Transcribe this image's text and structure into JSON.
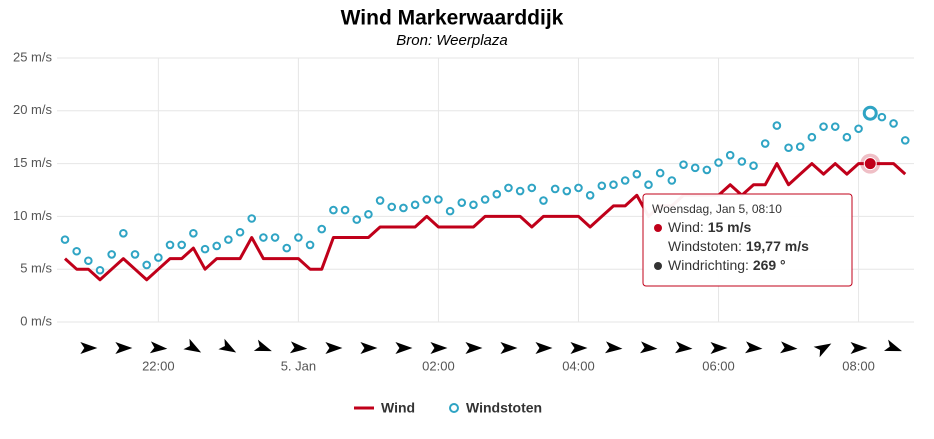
{
  "chart_data": {
    "type": "line",
    "title": "Wind Markerwaarddijk",
    "subtitle": "Bron: Weerplaza",
    "categories": [
      null,
      null,
      null,
      null,
      null,
      null,
      null,
      null,
      "22:00",
      null,
      null,
      null,
      null,
      null,
      null,
      null,
      null,
      null,
      null,
      null,
      "5. Jan",
      null,
      null,
      null,
      null,
      null,
      null,
      null,
      null,
      null,
      null,
      null,
      "02:00",
      null,
      null,
      null,
      null,
      null,
      null,
      null,
      null,
      null,
      null,
      null,
      "04:00",
      null,
      null,
      null,
      null,
      null,
      null,
      null,
      null,
      null,
      null,
      null,
      "06:00",
      null,
      null,
      null,
      null,
      null,
      null,
      null,
      null,
      null,
      null,
      null,
      "08:00",
      null,
      null,
      null,
      null
    ],
    "series": [
      {
        "name": "Wind",
        "color": "#c0001a",
        "marker": "line",
        "values": [
          6,
          5,
          5,
          4,
          5,
          6,
          5,
          4,
          5,
          6,
          6,
          7,
          5,
          6,
          6,
          6,
          8,
          6,
          6,
          6,
          6,
          5,
          5,
          8,
          8,
          8,
          8,
          9,
          9,
          9,
          9,
          10,
          9,
          9,
          9,
          9,
          10,
          10,
          10,
          10,
          9,
          10,
          10,
          10,
          10,
          9,
          10,
          11,
          11,
          12,
          10,
          11,
          11,
          12,
          12,
          12,
          12,
          13,
          12,
          13,
          13,
          15,
          13,
          14,
          15,
          14,
          15,
          14,
          15,
          15,
          15,
          15,
          14
        ]
      },
      {
        "name": "Windstoten",
        "color": "#2fa4c4",
        "marker": "circle",
        "values": [
          7.8,
          6.7,
          5.8,
          4.9,
          6.4,
          8.4,
          6.4,
          5.4,
          6.1,
          7.3,
          7.3,
          8.4,
          6.9,
          7.2,
          7.8,
          8.5,
          9.8,
          8,
          8,
          7,
          8,
          7.3,
          8.8,
          10.6,
          10.6,
          9.7,
          10.2,
          11.5,
          10.9,
          10.8,
          11.1,
          11.6,
          11.6,
          10.5,
          11.3,
          11.1,
          11.6,
          12.1,
          12.7,
          12.4,
          12.7,
          11.5,
          12.6,
          12.4,
          12.7,
          12,
          12.9,
          13,
          13.4,
          14,
          13,
          14.1,
          13.4,
          14.9,
          14.6,
          14.4,
          15.1,
          15.8,
          15.2,
          14.8,
          16.9,
          18.6,
          16.5,
          16.6,
          17.5,
          18.5,
          18.5,
          17.5,
          18.3,
          19.77,
          19.4,
          18.8,
          17.2
        ]
      }
    ],
    "directions": {
      "name": "Windrichting",
      "color": "#000000",
      "values": [
        null,
        null,
        270,
        null,
        null,
        270,
        null,
        null,
        275,
        null,
        null,
        300,
        null,
        null,
        300,
        null,
        null,
        290,
        null,
        null,
        275,
        null,
        null,
        270,
        null,
        null,
        270,
        null,
        null,
        270,
        null,
        null,
        270,
        null,
        null,
        270,
        null,
        null,
        270,
        null,
        null,
        270,
        null,
        null,
        270,
        null,
        null,
        275,
        null,
        null,
        275,
        null,
        null,
        275,
        null,
        null,
        270,
        null,
        null,
        275,
        null,
        null,
        275,
        null,
        null,
        240,
        null,
        null,
        270,
        null,
        null,
        290,
        null
      ]
    },
    "ylim": [
      0,
      25
    ],
    "yticks": [
      {
        "value": 0,
        "label": "0 m/s"
      },
      {
        "value": 5,
        "label": "5 m/s"
      },
      {
        "value": 10,
        "label": "10 m/s"
      },
      {
        "value": 15,
        "label": "15 m/s"
      },
      {
        "value": 20,
        "label": "20 m/s"
      },
      {
        "value": 25,
        "label": "25 m/s"
      }
    ],
    "grid": true,
    "legend": "bottom",
    "highlight_index": 69,
    "tooltip": {
      "header": "Woensdag, Jan 5, 08:10",
      "rows": [
        {
          "label": "Wind: ",
          "value": "15 m/s"
        },
        {
          "label": "Windstoten: ",
          "value": "19,77 m/s"
        },
        {
          "label": "Windrichting: ",
          "value": "269 °"
        }
      ]
    }
  }
}
